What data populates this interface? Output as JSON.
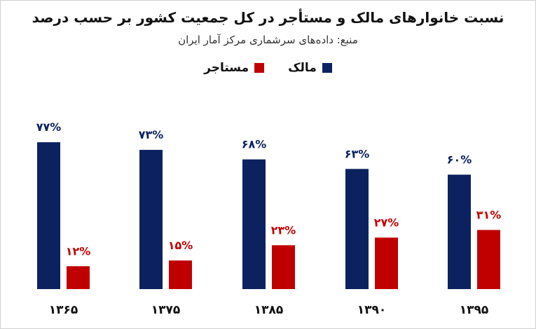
{
  "chart_data": {
    "type": "bar",
    "title": "نسبت خانوارهای مالک و مستأجر در کل جمعیت کشور بر حسب درصد",
    "subtitle": "منبع: داده‌های سرشماری مرکز آمار ایران",
    "categories": [
      "۱۳۶۵",
      "۱۳۷۵",
      "۱۳۸۵",
      "۱۳۹۰",
      "۱۳۹۵"
    ],
    "series": [
      {
        "name": "مالک",
        "color": "#0c2260",
        "values": [
          77,
          73,
          68,
          63,
          60
        ],
        "labels": [
          "۷۷%",
          "۷۳%",
          "۶۸%",
          "۶۳%",
          "۶۰%"
        ]
      },
      {
        "name": "مستاجر",
        "color": "#c00000",
        "values": [
          12,
          15,
          23,
          27,
          31
        ],
        "labels": [
          "۱۲%",
          "۱۵%",
          "۲۳%",
          "۲۷%",
          "۳۱%"
        ]
      }
    ],
    "ylim": [
      0,
      80
    ],
    "grid": false,
    "legend_position": "top-center"
  }
}
